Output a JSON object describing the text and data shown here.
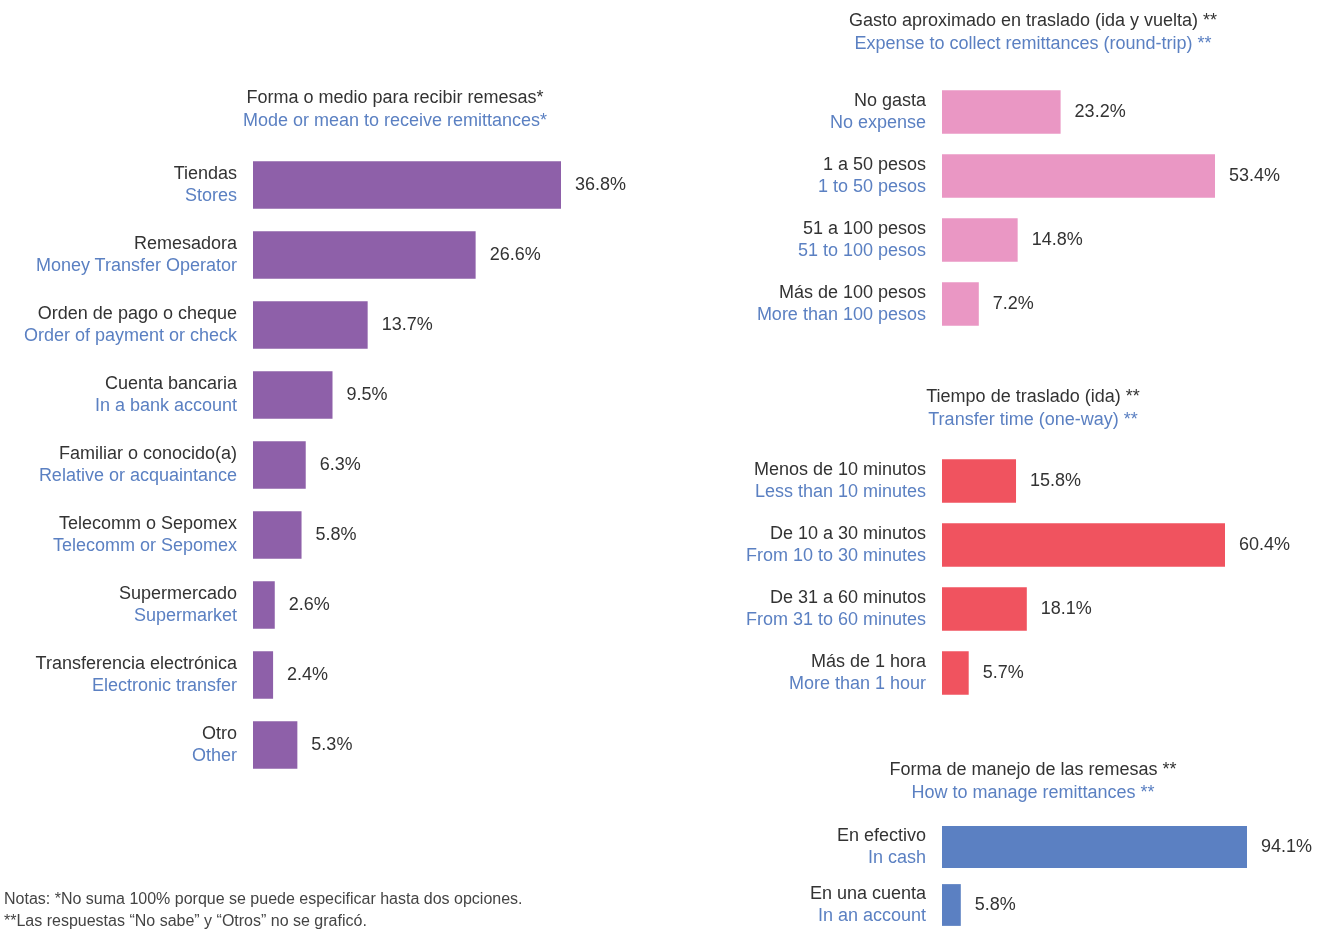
{
  "chart_data": [
    {
      "type": "bar",
      "orientation": "horizontal",
      "title": "Forma o medio para recibir remesas*\nMode or mean to receive remittances*",
      "categories": [
        "Tiendas\nStores",
        "Remesadora\nMoney Transfer Operator",
        "Orden de pago o cheque\nOrder of payment or check",
        "Cuenta bancaria\nIn a bank account",
        "Familiar o conocido(a)\nRelative or acquaintance",
        "Telecomm o Sepomex\nTelecomm or Sepomex",
        "Supermercado\nSupermarket",
        "Transferencia electrónica\nElectronic transfer",
        "Otro\nOther"
      ],
      "values": [
        36.8,
        26.6,
        13.7,
        9.5,
        6.3,
        5.8,
        2.6,
        2.4,
        5.3
      ],
      "value_labels": [
        "36.8%",
        "26.6%",
        "13.7%",
        "9.5%",
        "6.3%",
        "5.8%",
        "2.6%",
        "2.4%",
        "5.3%"
      ],
      "color": "#8e60a9",
      "legend": false,
      "annotations": [
        "Notas: *No suma 100% porque se puede especificar hasta dos opciones.",
        "**Las respuestas “No sabe” y “Otros” no se graficó."
      ]
    },
    {
      "type": "bar",
      "orientation": "horizontal",
      "title": "Gasto aproximado en traslado (ida y vuelta) **\nExpense to collect remittances (round-trip) **",
      "categories": [
        "No gasta\nNo expense",
        "1 a 50 pesos\n1 to 50 pesos",
        "51 a 100 pesos\n51 to 100 pesos",
        "Más de 100 pesos\nMore than 100 pesos"
      ],
      "values": [
        23.2,
        53.4,
        14.8,
        7.2
      ],
      "value_labels": [
        "23.2%",
        "53.4%",
        "14.8%",
        "7.2%"
      ],
      "color": "#ea97c4",
      "legend": false
    },
    {
      "type": "bar",
      "orientation": "horizontal",
      "title": "Tiempo de traslado (ida) **\nTransfer time (one-way) **",
      "categories": [
        "Menos de 10 minutos\nLess than 10 minutes",
        "De 10 a 30 minutos\nFrom 10 to 30 minutes",
        "De 31 a 60 minutos\nFrom 31 to 60 minutes",
        "Más de 1 hora\nMore than 1 hour"
      ],
      "values": [
        15.8,
        60.4,
        18.1,
        5.7
      ],
      "value_labels": [
        "15.8%",
        "60.4%",
        "18.1%",
        "5.7%"
      ],
      "color": "#f0535f",
      "legend": false
    },
    {
      "type": "bar",
      "orientation": "horizontal",
      "title": "Forma de manejo de las remesas **\nHow to manage remittances **",
      "categories": [
        "En efectivo\nIn cash",
        "En una cuenta\nIn an account"
      ],
      "values": [
        94.1,
        5.8
      ],
      "value_labels": [
        "94.1%",
        "5.8%"
      ],
      "color": "#5b80c2",
      "legend": false
    }
  ]
}
